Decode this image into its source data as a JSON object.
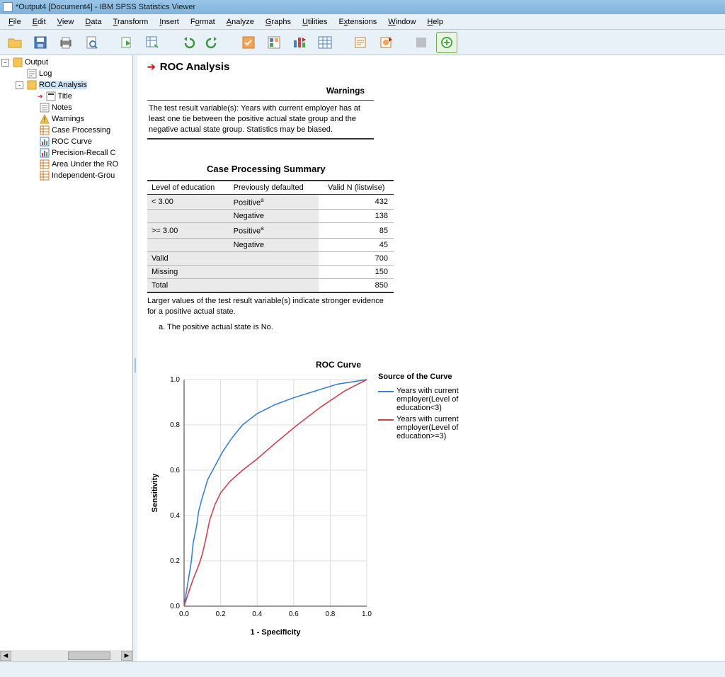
{
  "window": {
    "title": "*Output4 [Document4] - IBM SPSS Statistics Viewer"
  },
  "menu": [
    "File",
    "Edit",
    "View",
    "Data",
    "Transform",
    "Insert",
    "Format",
    "Analyze",
    "Graphs",
    "Utilities",
    "Extensions",
    "Window",
    "Help"
  ],
  "tree": {
    "root": "Output",
    "items": [
      {
        "label": "Log",
        "icon": "log",
        "indent": 1
      },
      {
        "label": "ROC Analysis",
        "icon": "folder",
        "indent": 1,
        "toggle": "-",
        "sel": true
      },
      {
        "label": "Title",
        "icon": "title",
        "indent": 2,
        "arrow": true
      },
      {
        "label": "Notes",
        "icon": "notes",
        "indent": 2
      },
      {
        "label": "Warnings",
        "icon": "warn",
        "indent": 2
      },
      {
        "label": "Case Processing",
        "icon": "table",
        "indent": 2
      },
      {
        "label": "ROC Curve",
        "icon": "chart",
        "indent": 2
      },
      {
        "label": "Precision-Recall C",
        "icon": "chart",
        "indent": 2
      },
      {
        "label": "Area Under the RO",
        "icon": "table",
        "indent": 2
      },
      {
        "label": "Independent-Grou",
        "icon": "table",
        "indent": 2
      }
    ]
  },
  "section_title": "ROC Analysis",
  "warnings": {
    "title": "Warnings",
    "text": "The test result variable(s): Years with current employer has at least one tie between the positive actual state group and the negative actual state group. Statistics may be biased."
  },
  "cps": {
    "title": "Case Processing Summary",
    "headers": [
      "Level of education",
      "Previously defaulted",
      "Valid N (listwise)"
    ],
    "rows": [
      {
        "c0": "< 3.00",
        "c1": "Positive",
        "sup": "a",
        "n": 432,
        "rowspan0": true
      },
      {
        "c0": "",
        "c1": "Negative",
        "n": 138
      },
      {
        "c0": ">= 3.00",
        "c1": "Positive",
        "sup": "a",
        "n": 85,
        "rowspan0": true,
        "thick": true
      },
      {
        "c0": "",
        "c1": "Negative",
        "n": 45
      },
      {
        "c0": "Valid",
        "c1": "",
        "n": 700,
        "thick": true
      },
      {
        "c0": "Missing",
        "c1": "",
        "n": 150
      },
      {
        "c0": "Total",
        "c1": "",
        "n": 850,
        "last": true
      }
    ],
    "footnote": "Larger values of the test result variable(s) indicate stronger evidence for a positive actual state.",
    "footnote_a": "a. The positive actual state is No."
  },
  "roc": {
    "title": "ROC Curve",
    "xlabel": "1 - Specificity",
    "ylabel": "Sensitivity",
    "xlim": [
      0,
      1
    ],
    "ylim": [
      0,
      1
    ],
    "ticks": [
      0.0,
      0.2,
      0.4,
      0.6,
      0.8,
      1.0
    ],
    "legend_title": "Source of the Curve",
    "series": [
      {
        "label": "Years with current employer(Level of education<3)",
        "color": "#3a7fd5",
        "points": [
          [
            0.0,
            0.0
          ],
          [
            0.02,
            0.1
          ],
          [
            0.04,
            0.2
          ],
          [
            0.05,
            0.28
          ],
          [
            0.07,
            0.36
          ],
          [
            0.08,
            0.42
          ],
          [
            0.1,
            0.48
          ],
          [
            0.13,
            0.56
          ],
          [
            0.17,
            0.62
          ],
          [
            0.21,
            0.68
          ],
          [
            0.26,
            0.74
          ],
          [
            0.32,
            0.8
          ],
          [
            0.4,
            0.85
          ],
          [
            0.5,
            0.89
          ],
          [
            0.6,
            0.92
          ],
          [
            0.72,
            0.95
          ],
          [
            0.84,
            0.98
          ],
          [
            1.0,
            1.0
          ]
        ]
      },
      {
        "label": "Years with current employer(Level of education>=3)",
        "color": "#d04050",
        "points": [
          [
            0.0,
            0.0
          ],
          [
            0.02,
            0.05
          ],
          [
            0.05,
            0.12
          ],
          [
            0.08,
            0.18
          ],
          [
            0.1,
            0.23
          ],
          [
            0.12,
            0.3
          ],
          [
            0.14,
            0.38
          ],
          [
            0.17,
            0.45
          ],
          [
            0.2,
            0.5
          ],
          [
            0.25,
            0.55
          ],
          [
            0.32,
            0.6
          ],
          [
            0.4,
            0.65
          ],
          [
            0.5,
            0.72
          ],
          [
            0.62,
            0.8
          ],
          [
            0.75,
            0.88
          ],
          [
            0.88,
            0.95
          ],
          [
            1.0,
            1.0
          ]
        ]
      }
    ],
    "background": "#ffffff",
    "grid_color": "#dcdcdc",
    "axis_color": "#333333",
    "label_fontsize": 11
  },
  "colors": {
    "accent": "#9ac5e8"
  }
}
